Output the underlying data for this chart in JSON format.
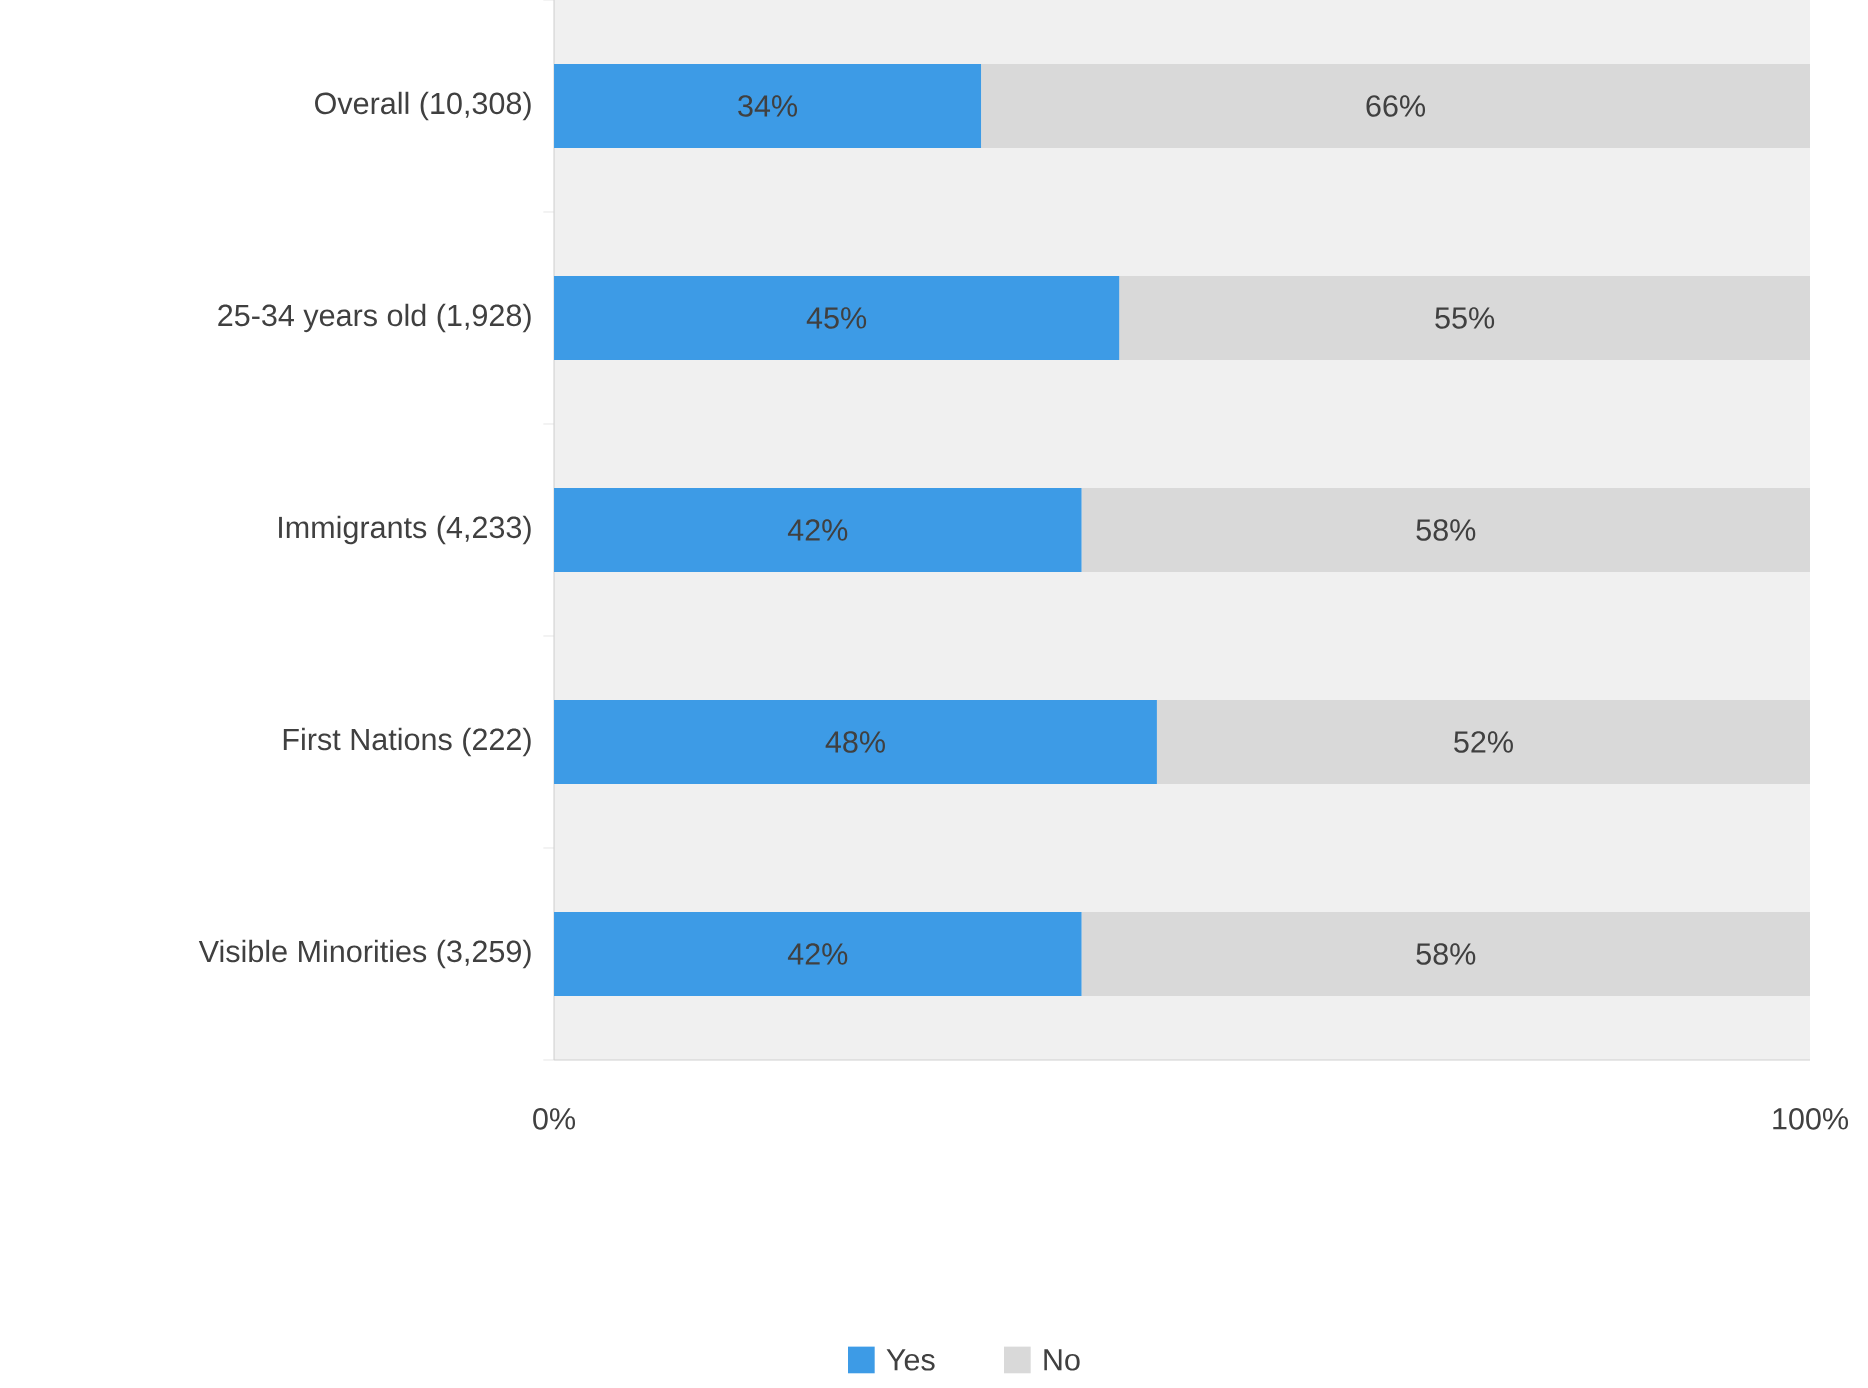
{
  "chart_data": {
    "type": "bar",
    "orientation": "horizontal",
    "stacked": true,
    "categories": [
      "Overall (10,308)",
      "25-34 years old (1,928)",
      "Immigrants (4,233)",
      "First Nations (222)",
      "Visible Minorities (3,259)"
    ],
    "series": [
      {
        "name": "Yes",
        "color": "#3d9be6",
        "values": [
          34,
          45,
          42,
          48,
          42
        ],
        "value_labels": [
          "34%",
          "45%",
          "42%",
          "48%",
          "42%"
        ]
      },
      {
        "name": "No",
        "color": "#d9d9d9",
        "values": [
          66,
          55,
          58,
          52,
          58
        ],
        "value_labels": [
          "66%",
          "55%",
          "58%",
          "52%",
          "58%"
        ]
      }
    ],
    "xlim": [
      0,
      100
    ],
    "xticks": [
      {
        "value": 0,
        "label": "0%"
      },
      {
        "value": 100,
        "label": "100%"
      }
    ],
    "legend": "bottom",
    "grid": false
  }
}
